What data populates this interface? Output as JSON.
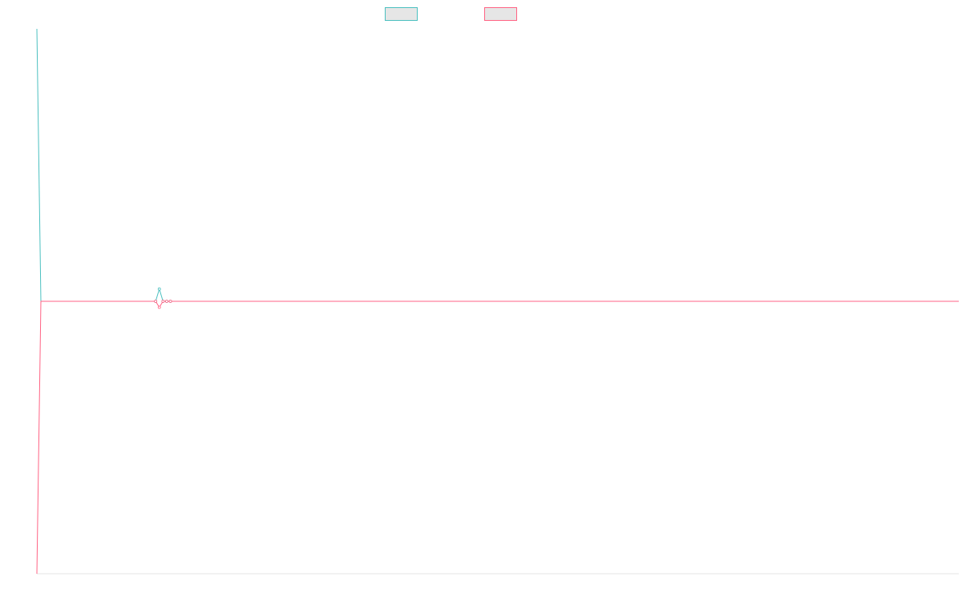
{
  "chart_data": {
    "type": "line",
    "x": [
      1,
      2,
      3,
      4,
      5,
      6,
      7,
      8,
      9,
      10,
      11,
      12,
      13,
      14,
      15,
      16,
      17,
      18,
      19,
      20,
      21,
      22,
      23,
      24,
      25,
      26,
      27,
      28,
      29,
      30,
      31,
      32,
      33,
      34,
      35,
      36,
      37,
      38,
      39,
      40,
      41,
      42,
      43,
      44,
      45,
      46,
      47,
      48,
      49,
      50,
      51,
      52,
      53,
      54,
      55,
      56,
      57,
      58,
      59,
      60,
      61,
      62,
      63,
      64,
      65,
      66,
      67,
      68,
      69,
      70,
      71,
      72,
      73,
      74,
      75,
      76,
      77,
      78,
      79,
      80,
      81,
      82,
      83,
      84,
      85,
      86,
      87,
      88,
      89,
      90,
      91,
      92,
      93,
      94,
      95,
      96,
      97,
      98,
      99,
      100,
      101,
      102,
      103,
      104,
      105,
      106,
      107,
      108,
      109,
      110,
      111,
      112,
      113,
      114,
      115,
      116,
      117,
      118,
      119,
      120,
      121,
      122,
      123,
      124,
      125,
      126,
      127,
      128,
      129,
      130,
      131,
      132,
      133,
      134,
      135,
      136,
      137,
      138,
      139,
      140,
      141,
      142,
      143,
      144,
      145,
      146,
      147,
      148,
      149,
      150,
      151,
      152,
      153,
      154,
      155,
      156,
      157,
      158,
      159,
      160,
      161,
      162,
      163,
      164,
      165,
      166,
      167,
      168,
      169,
      170,
      171,
      172,
      173,
      174,
      175,
      176,
      177,
      178,
      179,
      180,
      181,
      182,
      183,
      184,
      185,
      186,
      187,
      188,
      189,
      190,
      191,
      192,
      193,
      194,
      195,
      196,
      197,
      198,
      199,
      200,
      201,
      202,
      203,
      204,
      205,
      206,
      207,
      208,
      209,
      210,
      211,
      212,
      213,
      214,
      215,
      216,
      217,
      218,
      219,
      220,
      221,
      222,
      223,
      224,
      225,
      226,
      227,
      228,
      229,
      230,
      231,
      232,
      233,
      234,
      235,
      236,
      237,
      238,
      239,
      240,
      241,
      242,
      243,
      244,
      245,
      246,
      247,
      248,
      249,
      250
    ],
    "series": [
      {
        "color": "#4bc0c0",
        "values": [
          100,
          0,
          0,
          0,
          0,
          0,
          0,
          0,
          0,
          0,
          0,
          0,
          0,
          0,
          0,
          0,
          0,
          0,
          0,
          0,
          0,
          0,
          0,
          0,
          0,
          0,
          0,
          0,
          0,
          0,
          0,
          0,
          0,
          4.5,
          0,
          0,
          0,
          0,
          0,
          0,
          0,
          0,
          0,
          0,
          0,
          0,
          0,
          0,
          0,
          0,
          0,
          0,
          0,
          0,
          0,
          0,
          0,
          0,
          0,
          0,
          0,
          0,
          0,
          0,
          0,
          0,
          0,
          0,
          0,
          0,
          0,
          0,
          0,
          0,
          0,
          0,
          0,
          0,
          0,
          0,
          0,
          0,
          0,
          0,
          0,
          0,
          0,
          0,
          0,
          0,
          0,
          0,
          0,
          0,
          0,
          0,
          0,
          0,
          0,
          0,
          0,
          0,
          0,
          0,
          0,
          0,
          0,
          0,
          0,
          0,
          0,
          0,
          0,
          0,
          0,
          0,
          0,
          0,
          0,
          0,
          0,
          0,
          0,
          0,
          0,
          0,
          0,
          0,
          0,
          0,
          0,
          0,
          0,
          0,
          0,
          0,
          0,
          0,
          0,
          0,
          0,
          0,
          0,
          0,
          0,
          0,
          0,
          0,
          0,
          0,
          0,
          0,
          0,
          0,
          0,
          0,
          0,
          0,
          0,
          0,
          0,
          0,
          0,
          0,
          0,
          0,
          0,
          0,
          0,
          0,
          0,
          0,
          0,
          0,
          0,
          0,
          0,
          0,
          0,
          0,
          0,
          0,
          0,
          0,
          0,
          0,
          0,
          0,
          0,
          0,
          0,
          0,
          0,
          0,
          0,
          0,
          0,
          0,
          0,
          0,
          0,
          0,
          0,
          0,
          0,
          0,
          0,
          0,
          0,
          0,
          0,
          0,
          0,
          0,
          0,
          0,
          0,
          0,
          0,
          0,
          0,
          0,
          0,
          0,
          0,
          0,
          0,
          0,
          0,
          0,
          0,
          0,
          0,
          0,
          0,
          0,
          0,
          0,
          0,
          0,
          0,
          0,
          0,
          0,
          0,
          0,
          0,
          0,
          0,
          0
        ]
      },
      {
        "color": "#ff6384",
        "values": [
          -100,
          0,
          0,
          0,
          0,
          0,
          0,
          0,
          0,
          0,
          0,
          0,
          0,
          0,
          0,
          0,
          0,
          0,
          0,
          0,
          0,
          0,
          0,
          0,
          0,
          0,
          0,
          0,
          0,
          0,
          0,
          0,
          0,
          -2.2,
          0,
          0,
          0,
          0,
          0,
          0,
          0,
          0,
          0,
          0,
          0,
          0,
          0,
          0,
          0,
          0,
          0,
          0,
          0,
          0,
          0,
          0,
          0,
          0,
          0,
          0,
          0,
          0,
          0,
          0,
          0,
          0,
          0,
          0,
          0,
          0,
          0,
          0,
          0,
          0,
          0,
          0,
          0,
          0,
          0,
          0,
          0,
          0,
          0,
          0,
          0,
          0,
          0,
          0,
          0,
          0,
          0,
          0,
          0,
          0,
          0,
          0,
          0,
          0,
          0,
          0,
          0,
          0,
          0,
          0,
          0,
          0,
          0,
          0,
          0,
          0,
          0,
          0,
          0,
          0,
          0,
          0,
          0,
          0,
          0,
          0,
          0,
          0,
          0,
          0,
          0,
          0,
          0,
          0,
          0,
          0,
          0,
          0,
          0,
          0,
          0,
          0,
          0,
          0,
          0,
          0,
          0,
          0,
          0,
          0,
          0,
          0,
          0,
          0,
          0,
          0,
          0,
          0,
          0,
          0,
          0,
          0,
          0,
          0,
          0,
          0,
          0,
          0,
          0,
          0,
          0,
          0,
          0,
          0,
          0,
          0,
          0,
          0,
          0,
          0,
          0,
          0,
          0,
          0,
          0,
          0,
          0,
          0,
          0,
          0,
          0,
          0,
          0,
          0,
          0,
          0,
          0,
          0,
          0,
          0,
          0,
          0,
          0,
          0,
          0,
          0,
          0,
          0,
          0,
          0,
          0,
          0,
          0,
          0,
          0,
          0,
          0,
          0,
          0,
          0,
          0,
          0,
          0,
          0,
          0,
          0,
          0,
          0,
          0,
          0,
          0,
          0,
          0,
          0,
          0,
          0,
          0,
          0,
          0,
          0,
          0,
          0,
          0,
          0,
          0,
          0,
          0,
          0,
          0,
          0,
          0,
          0,
          0,
          0,
          0,
          0
        ]
      }
    ],
    "ylim": [
      -100,
      100
    ],
    "legend": "top-center",
    "grid": false
  }
}
